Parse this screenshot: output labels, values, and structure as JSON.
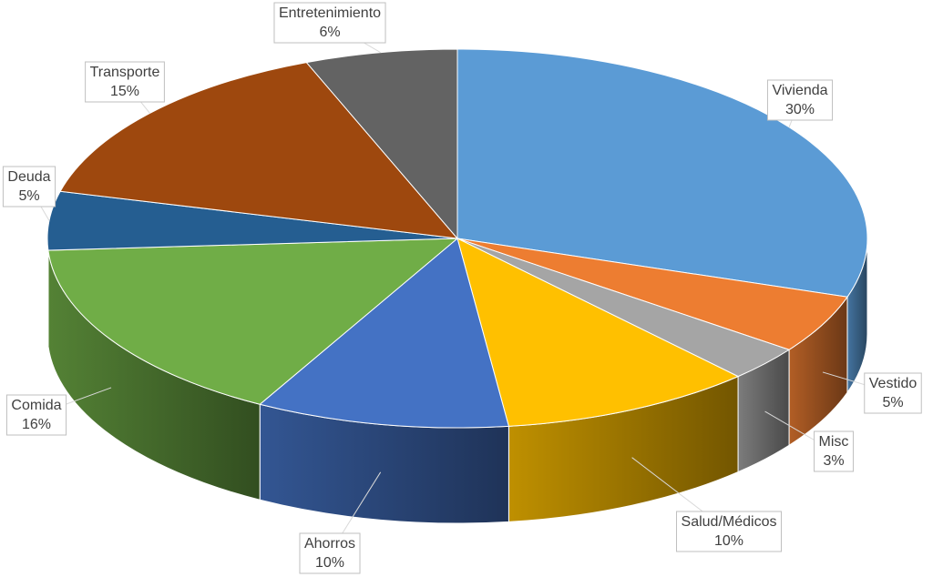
{
  "chart_data": {
    "type": "pie3d",
    "categories": [
      "Vivienda",
      "Vestido",
      "Misc",
      "Salud/Médicos",
      "Ahorros",
      "Comida",
      "Deuda",
      "Transporte",
      "Entretenimiento"
    ],
    "values": [
      30,
      5,
      3,
      10,
      10,
      16,
      5,
      15,
      6
    ],
    "value_labels": [
      "30%",
      "5%",
      "3%",
      "10%",
      "10%",
      "16%",
      "5%",
      "15%",
      "6%"
    ],
    "colors": [
      "#5b9bd5",
      "#ed7d31",
      "#a5a5a5",
      "#ffc000",
      "#4472c4",
      "#70ad47",
      "#255e91",
      "#9e480e",
      "#636363"
    ]
  }
}
